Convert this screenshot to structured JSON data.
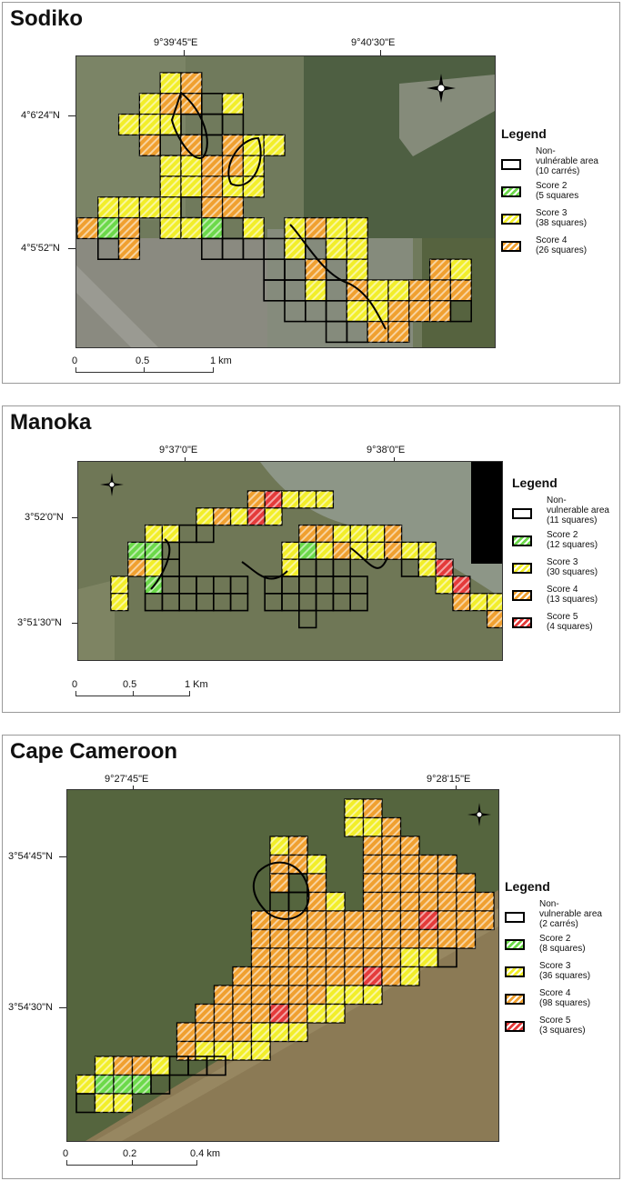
{
  "colors": {
    "nonvulnerable_fill": "#ffffff",
    "score2": "#6cd94a",
    "score3": "#f2ee2a",
    "score4": "#f0a030",
    "score5": "#e43a3a",
    "stripe": "#ffffff"
  },
  "panels": [
    {
      "title": "Sodiko",
      "lon_labels": [
        "9°39'45\"E",
        "9°40'30\"E"
      ],
      "lat_labels": [
        "4°6'24\"N",
        "4°5'52\"N"
      ],
      "legend": {
        "title": "Legend",
        "items": [
          {
            "label": "Non-\nvulnérable area\n(10 carrés)",
            "color_key": "nonvulnerable_fill",
            "score": "0"
          },
          {
            "label": "Score 2\n(5 squares",
            "color_key": "score2",
            "score": "2"
          },
          {
            "label": "Score 3\n(38 squares)",
            "color_key": "score3",
            "score": "3"
          },
          {
            "label": "Score 4\n(26 squares)",
            "color_key": "score4",
            "score": "4"
          }
        ]
      },
      "scale": {
        "labels": [
          "0",
          "0.5",
          "1 km"
        ]
      },
      "north_icon": "north-arrow-icon"
    },
    {
      "title": "Manoka",
      "lon_labels": [
        "9°37'0\"E",
        "9°38'0\"E"
      ],
      "lat_labels": [
        "3°52'0\"N",
        "3°51'30\"N"
      ],
      "legend": {
        "title": "Legend",
        "items": [
          {
            "label": "Non-\nvulnerable area\n(11 squares)",
            "color_key": "nonvulnerable_fill",
            "score": "0"
          },
          {
            "label": "Score 2\n(12 squares)",
            "color_key": "score2",
            "score": "2"
          },
          {
            "label": "Score 3\n(30 squares)",
            "color_key": "score3",
            "score": "3"
          },
          {
            "label": "Score 4\n(13 squares)",
            "color_key": "score4",
            "score": "4"
          },
          {
            "label": "Score 5\n(4 squares)",
            "color_key": "score5",
            "score": "5"
          }
        ]
      },
      "scale": {
        "labels": [
          "0",
          "0.5",
          "1 Km"
        ]
      },
      "north_icon": "north-arrow-icon"
    },
    {
      "title": "Cape Cameroon",
      "lon_labels": [
        "9°27'45\"E",
        "9°28'15\"E"
      ],
      "lat_labels": [
        "3°54'45\"N",
        "3°54'30\"N"
      ],
      "legend": {
        "title": "Legend",
        "items": [
          {
            "label": "Non-\nvulnerable area\n(2 carrés)",
            "color_key": "nonvulnerable_fill",
            "score": "0"
          },
          {
            "label": "Score 2\n(8 squares)",
            "color_key": "score2",
            "score": "2"
          },
          {
            "label": "Score 3\n(36 squares)",
            "color_key": "score3",
            "score": "3"
          },
          {
            "label": "Score 4\n(98 squares)",
            "color_key": "score4",
            "score": "4"
          },
          {
            "label": "Score 5\n(3 squares)",
            "color_key": "score5",
            "score": "5"
          }
        ]
      },
      "scale": {
        "labels": [
          "0",
          "0.2",
          "0.4 km"
        ]
      },
      "north_icon": "north-arrow-icon"
    }
  ]
}
